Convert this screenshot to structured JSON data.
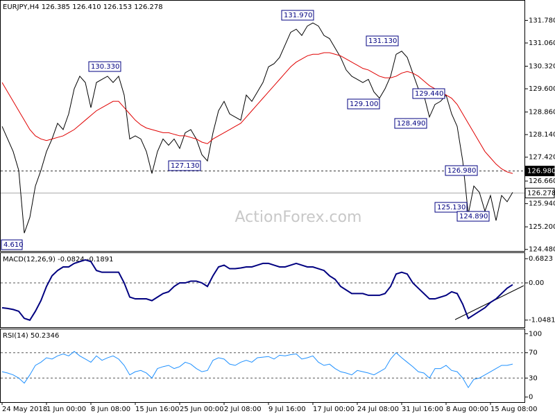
{
  "chart_data": [
    {
      "type": "line",
      "title": "EURJPY,H4  126.385 126.410 126.153 126.278",
      "watermark": "ActionForex.com",
      "categories": [
        "24 May 2018",
        null,
        null,
        null,
        null,
        null,
        null,
        null,
        "1 Jun 00:00",
        null,
        null,
        null,
        null,
        null,
        null,
        null,
        "8 Jun 08:00",
        null,
        null,
        null,
        null,
        null,
        null,
        null,
        "15 Jun 16:00",
        null,
        null,
        null,
        null,
        null,
        null,
        null,
        "25 Jun 00:00",
        null,
        null,
        null,
        null,
        null,
        null,
        null,
        "2 Jul 08:00",
        null,
        null,
        null,
        null,
        null,
        null,
        null,
        "9 Jul 16:00",
        null,
        null,
        null,
        null,
        null,
        null,
        null,
        "17 Jul 00:00",
        null,
        null,
        null,
        null,
        null,
        null,
        null,
        "24 Jul 08:00",
        null,
        null,
        null,
        null,
        null,
        null,
        null,
        "31 Jul 16:00",
        null,
        null,
        null,
        null,
        null,
        null,
        null,
        "8 Aug 00:00",
        null,
        null,
        null,
        null,
        null,
        null,
        null,
        "15 Aug 08:00",
        null,
        null,
        null,
        null
      ],
      "series": [
        {
          "color": "#000000",
          "values": [
            128.4,
            128.0,
            127.6,
            127.0,
            125.0,
            125.5,
            126.5,
            127.0,
            127.6,
            128.0,
            128.5,
            128.3,
            128.8,
            129.6,
            130.0,
            129.8,
            129.0,
            129.8,
            129.9,
            130.0,
            129.8,
            130.0,
            129.4,
            128.0,
            128.1,
            128.0,
            127.6,
            126.9,
            127.6,
            128.0,
            127.8,
            128.0,
            127.7,
            128.2,
            128.3,
            128.0,
            127.5,
            127.3,
            128.2,
            128.9,
            129.2,
            128.8,
            128.7,
            128.6,
            129.4,
            129.2,
            129.5,
            129.8,
            130.3,
            130.4,
            130.6,
            131.0,
            131.4,
            131.5,
            131.3,
            131.6,
            131.7,
            131.6,
            131.3,
            131.2,
            130.9,
            130.6,
            130.2,
            130.0,
            129.9,
            129.8,
            129.9,
            129.5,
            129.3,
            129.6,
            130.0,
            130.7,
            130.8,
            130.6,
            130.1,
            129.6,
            129.4,
            128.7,
            129.1,
            129.2,
            129.4,
            128.8,
            128.4,
            127.3,
            125.6,
            126.5,
            126.3,
            125.7,
            126.2,
            125.4,
            126.2,
            126.0,
            126.3
          ]
        },
        {
          "color": "#e00000",
          "values": [
            129.8,
            129.5,
            129.2,
            128.9,
            128.6,
            128.3,
            128.1,
            128.0,
            127.95,
            128.0,
            128.05,
            128.1,
            128.2,
            128.3,
            128.45,
            128.6,
            128.75,
            128.9,
            129.0,
            129.1,
            129.2,
            129.2,
            129.0,
            128.8,
            128.6,
            128.45,
            128.35,
            128.3,
            128.25,
            128.2,
            128.2,
            128.15,
            128.1,
            128.1,
            128.05,
            128.0,
            127.9,
            127.85,
            128.0,
            128.1,
            128.2,
            128.3,
            128.4,
            128.5,
            128.7,
            128.9,
            129.1,
            129.3,
            129.5,
            129.7,
            129.9,
            130.1,
            130.3,
            130.45,
            130.55,
            130.65,
            130.7,
            130.7,
            130.75,
            130.75,
            130.7,
            130.65,
            130.55,
            130.45,
            130.35,
            130.25,
            130.2,
            130.1,
            130.0,
            129.95,
            129.95,
            130.0,
            130.1,
            130.15,
            130.1,
            130.0,
            129.85,
            129.7,
            129.6,
            129.5,
            129.4,
            129.3,
            129.1,
            128.8,
            128.5,
            128.2,
            127.9,
            127.6,
            127.4,
            127.2,
            127.05,
            126.95,
            126.9
          ]
        }
      ],
      "ylim": [
        124.43,
        132.43
      ],
      "yticks": [
        {
          "value": 131.78,
          "label": "131.780"
        },
        {
          "value": 131.06,
          "label": "131.060"
        },
        {
          "value": 130.32,
          "label": "130.320"
        },
        {
          "value": 129.6,
          "label": "129.600"
        },
        {
          "value": 128.86,
          "label": "128.860"
        },
        {
          "value": 128.14,
          "label": "128.140"
        },
        {
          "value": 127.42,
          "label": "127.420"
        },
        {
          "value": 126.66,
          "label": "126.660"
        },
        {
          "value": 125.94,
          "label": "125.940"
        },
        {
          "value": 125.2,
          "label": "125.200"
        },
        {
          "value": 124.48,
          "label": "124.480"
        }
      ],
      "price_lines": [
        {
          "value": 126.98,
          "label": "126.980"
        },
        126.278
      ],
      "annotations": [
        "131.970",
        "131.130",
        "130.330",
        "129.440",
        "129.100",
        "128.490",
        "127.130",
        "126.980",
        "125.130",
        "124.890",
        "4.610"
      ]
    },
    {
      "type": "line",
      "title": "MACD(12,26,9) -0.0824 -0.1891",
      "series": [
        {
          "color": "#000080",
          "values": [
            -0.7,
            -0.72,
            -0.75,
            -0.8,
            -1.0,
            -1.05,
            -0.8,
            -0.5,
            -0.1,
            0.2,
            0.35,
            0.45,
            0.45,
            0.55,
            0.6,
            0.65,
            0.6,
            0.35,
            0.3,
            0.3,
            0.3,
            0.3,
            0.0,
            -0.4,
            -0.45,
            -0.45,
            -0.45,
            -0.5,
            -0.4,
            -0.3,
            -0.25,
            -0.1,
            0.0,
            0.0,
            0.05,
            0.05,
            0.0,
            -0.1,
            0.2,
            0.45,
            0.5,
            0.4,
            0.4,
            0.42,
            0.45,
            0.45,
            0.5,
            0.55,
            0.55,
            0.5,
            0.45,
            0.45,
            0.5,
            0.55,
            0.5,
            0.45,
            0.45,
            0.4,
            0.35,
            0.2,
            0.1,
            -0.1,
            -0.2,
            -0.3,
            -0.3,
            -0.3,
            -0.35,
            -0.35,
            -0.35,
            -0.3,
            -0.1,
            0.25,
            0.3,
            0.25,
            0.0,
            -0.15,
            -0.3,
            -0.45,
            -0.45,
            -0.4,
            -0.35,
            -0.25,
            -0.3,
            -0.6,
            -1.0,
            -0.9,
            -0.8,
            -0.7,
            -0.55,
            -0.45,
            -0.3,
            -0.15,
            -0.05
          ]
        }
      ],
      "ylim": [
        -1.25,
        0.86
      ],
      "yticks": [
        0.6823,
        {
          "value": 0,
          "label": "0.00"
        },
        -1.0481
      ]
    },
    {
      "type": "line",
      "title": "RSI(14) 50.2346",
      "series": [
        {
          "color": "#1e90ff",
          "values": [
            40,
            38,
            35,
            30,
            22,
            35,
            50,
            55,
            62,
            60,
            65,
            68,
            65,
            72,
            65,
            60,
            55,
            65,
            58,
            62,
            65,
            60,
            50,
            35,
            40,
            42,
            38,
            30,
            45,
            48,
            50,
            45,
            48,
            55,
            52,
            45,
            40,
            42,
            58,
            62,
            60,
            52,
            50,
            55,
            58,
            55,
            62,
            63,
            64,
            60,
            66,
            65,
            67,
            68,
            60,
            62,
            65,
            55,
            50,
            52,
            45,
            40,
            38,
            35,
            42,
            40,
            38,
            35,
            40,
            45,
            60,
            70,
            62,
            55,
            48,
            40,
            38,
            30,
            45,
            45,
            50,
            42,
            40,
            30,
            15,
            28,
            30,
            35,
            40,
            45,
            50,
            50,
            52
          ]
        }
      ],
      "ylim": [
        -8,
        108
      ],
      "yticks": [
        100,
        70,
        30,
        0
      ]
    }
  ]
}
